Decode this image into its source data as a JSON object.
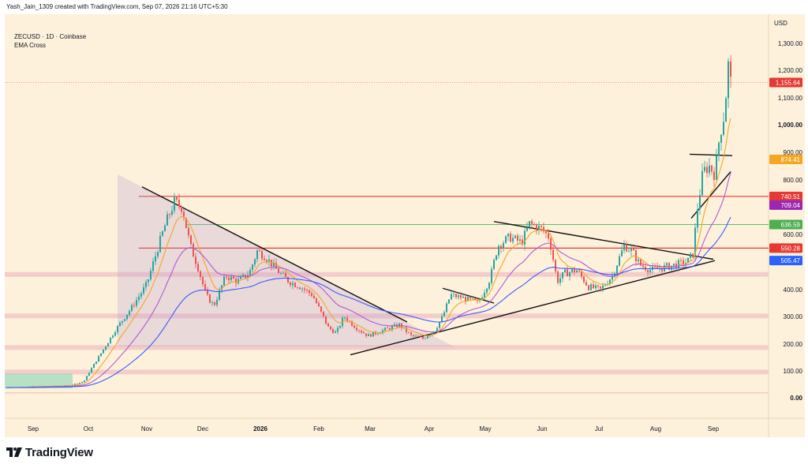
{
  "header": {
    "text": "Yash_Jain_1309 created with TradingView.com, Sep 07, 2026 21:16 UTC+5:30"
  },
  "legend": {
    "symbol": "ZECUSD · 1D · Coinbase",
    "indicator": "EMA Cross"
  },
  "brand": {
    "name": "TradingView"
  },
  "colors": {
    "background": "#fdf1dc",
    "up": "#26a69a",
    "down": "#ef5350",
    "ema_fast": "#f5a623",
    "ema_mid": "#b05bd4",
    "ema_slow": "#3d5afe",
    "resistance": "#e53935",
    "support_zone": "#f3c9c6",
    "green_level": "#66bb6a"
  },
  "chart_data": {
    "type": "candlestick",
    "symbol": "ZECUSD",
    "interval": "1D",
    "exchange": "Coinbase",
    "currency": "USD",
    "y_axis": {
      "scale": "log",
      "ticks": [
        {
          "value": 1300,
          "label": "1,300.00"
        },
        {
          "value": 1200,
          "label": "1,200.00"
        },
        {
          "value": 1100,
          "label": "1,100.00"
        },
        {
          "value": 1000,
          "label": "1,000.00"
        },
        {
          "value": 900,
          "label": "900.00"
        },
        {
          "value": 800,
          "label": "800.00"
        },
        {
          "value": 700,
          "label": "700.00"
        },
        {
          "value": 600,
          "label": "600.00"
        },
        {
          "value": 500,
          "label": "500.00"
        },
        {
          "value": 400,
          "label": "400.00"
        },
        {
          "value": 300,
          "label": "300.00"
        },
        {
          "value": 200,
          "label": "200.00"
        },
        {
          "value": 100,
          "label": "100.00"
        },
        {
          "value": 0,
          "label": "0.00"
        }
      ]
    },
    "x_axis": {
      "labels": [
        "Sep",
        "Oct",
        "Nov",
        "Dec",
        "2026",
        "Feb",
        "Mar",
        "Apr",
        "May",
        "Jun",
        "Jul",
        "Aug",
        "Sep"
      ]
    },
    "price_labels": [
      {
        "value": 1155.64,
        "label": "1,155.64",
        "color": "#e53935"
      },
      {
        "value": 874.41,
        "label": "874.41",
        "color": "#f5a623"
      },
      {
        "value": 740.51,
        "label": "740.51",
        "color": "#e53935"
      },
      {
        "value": 709.04,
        "label": "709.04",
        "color": "#9c27b0"
      },
      {
        "value": 636.59,
        "label": "636.59",
        "color": "#4caf50"
      },
      {
        "value": 550.28,
        "label": "550.28",
        "color": "#e53935"
      },
      {
        "value": 505.47,
        "label": "505.47",
        "color": "#2962ff"
      }
    ],
    "horizontal_levels": [
      {
        "value": 740.51,
        "kind": "resistance-line"
      },
      {
        "value": 636.59,
        "kind": "green-line"
      },
      {
        "value": 550.28,
        "kind": "resistance-line"
      },
      {
        "value": 455,
        "kind": "support-zone"
      },
      {
        "value": 302,
        "kind": "support-zone"
      },
      {
        "value": 187,
        "kind": "support-zone"
      },
      {
        "value": 96,
        "kind": "support-zone"
      }
    ],
    "last_price": 1155.64
  }
}
